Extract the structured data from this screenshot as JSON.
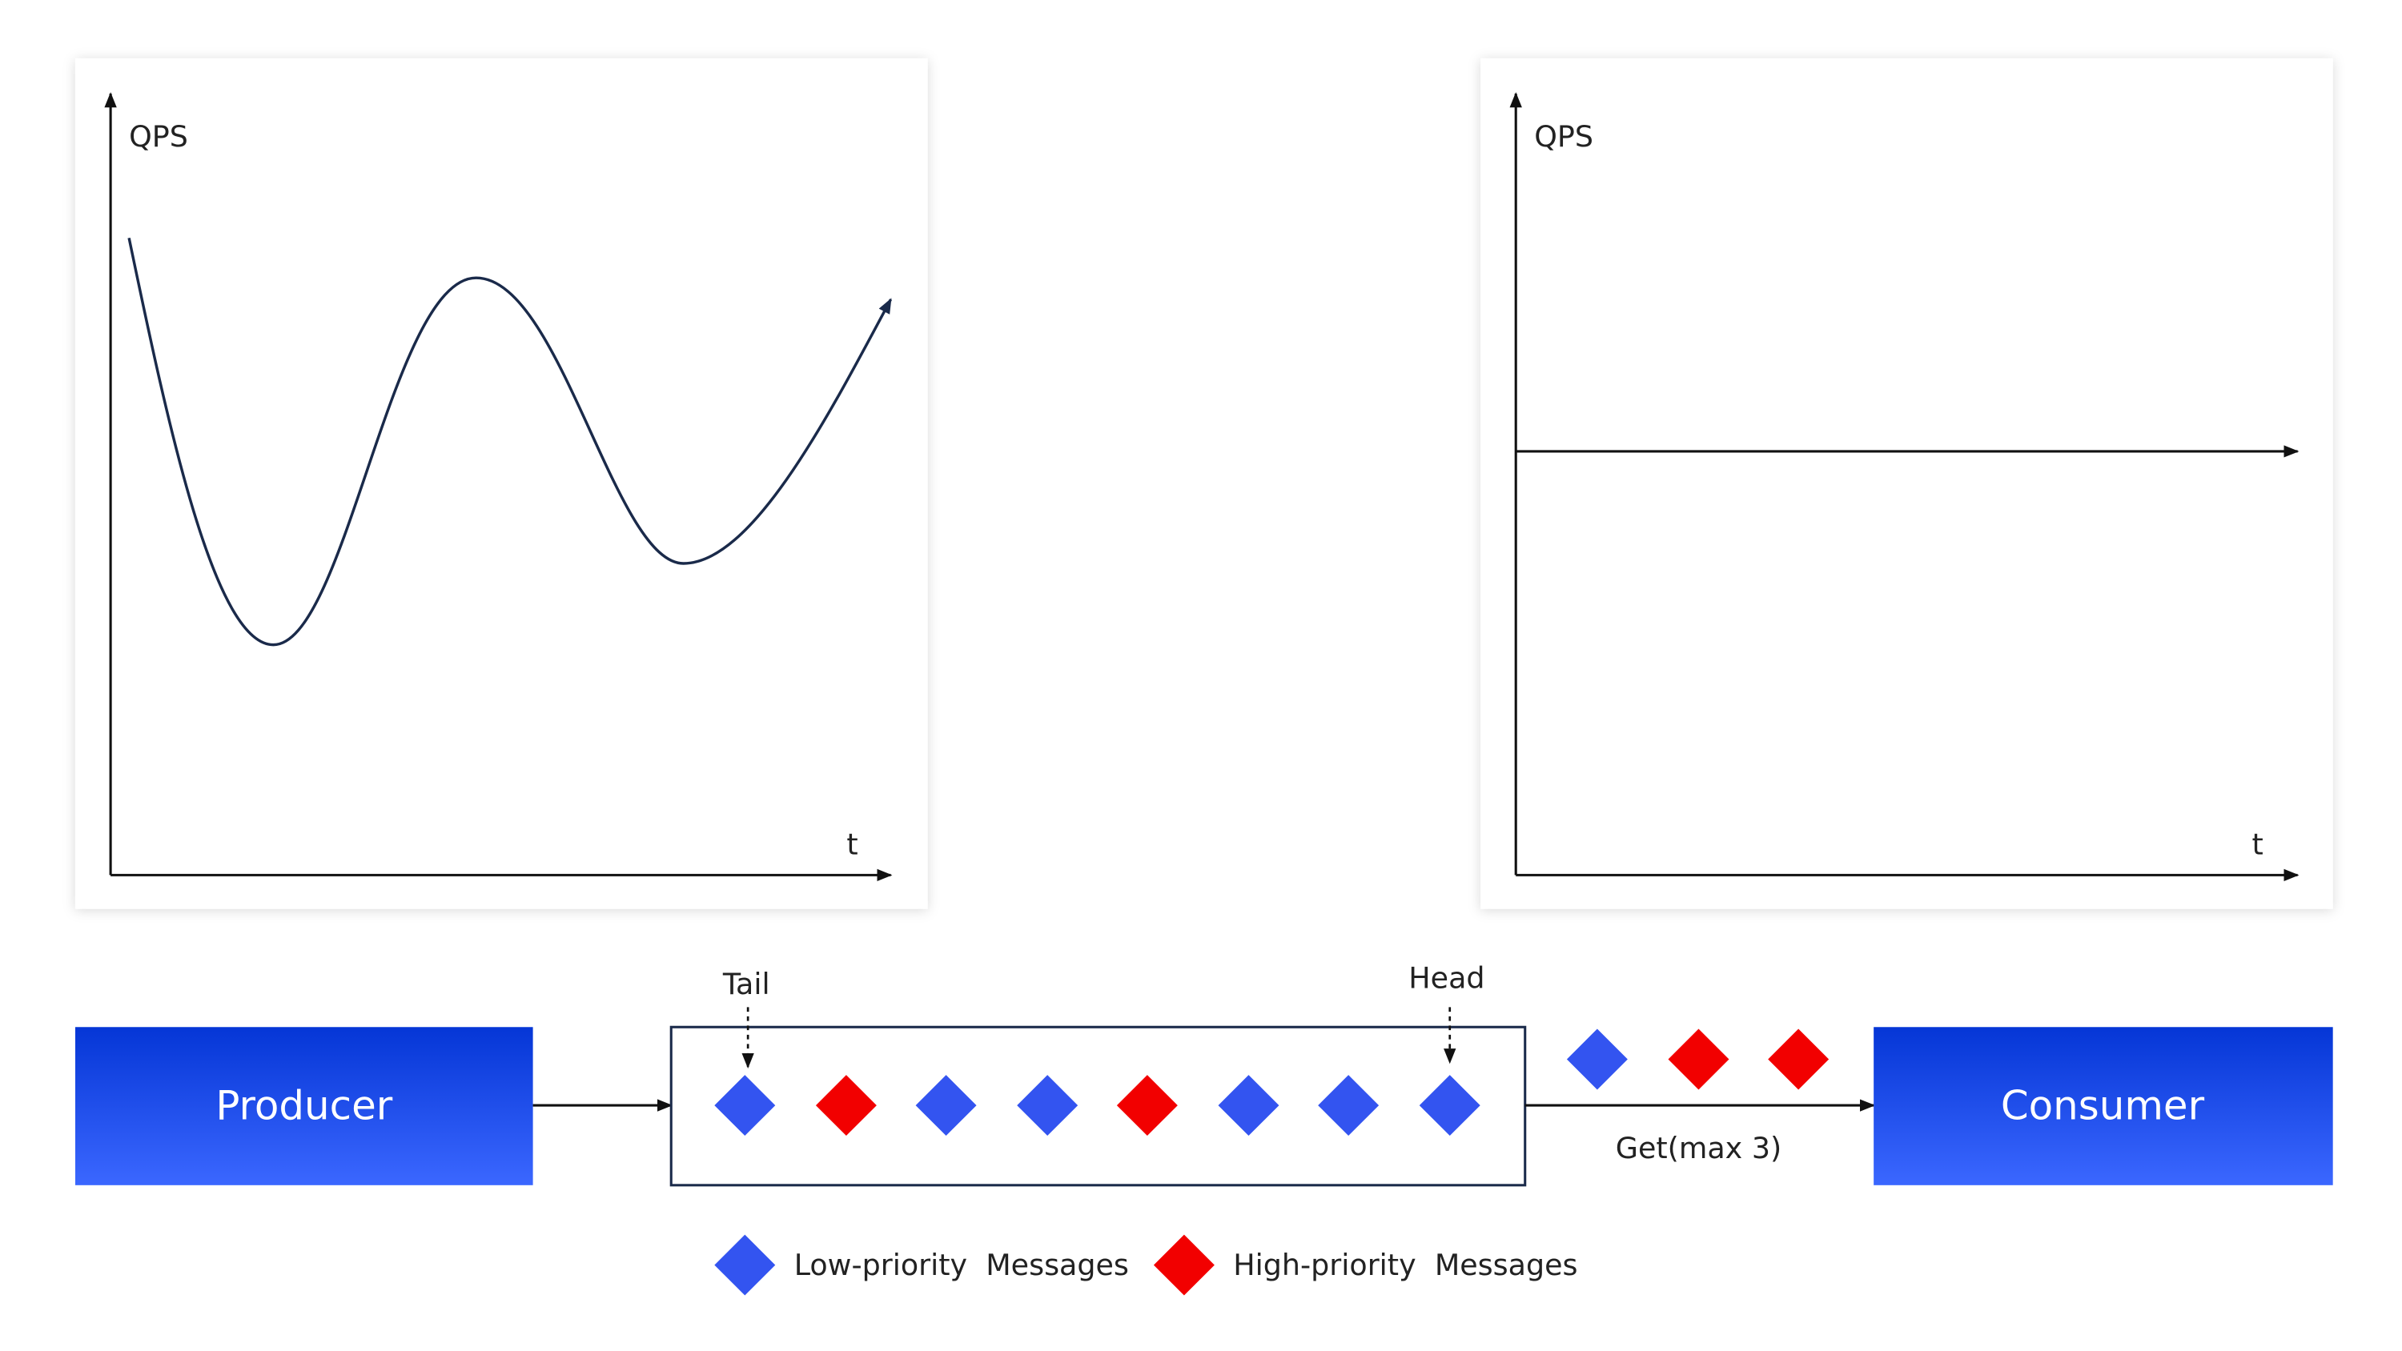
{
  "left_chart": {
    "y_label": "QPS",
    "x_label": "t"
  },
  "right_chart": {
    "y_label": "QPS",
    "x_label": "t"
  },
  "queue": {
    "tail_label": "Tail",
    "head_label": "Head"
  },
  "producer": {
    "label": "Producer"
  },
  "consumer": {
    "label": "Consumer"
  },
  "get_label": "Get(max 3)",
  "legend": {
    "low": "Low-priority  Messages",
    "high": "High-priority  Messages"
  }
}
